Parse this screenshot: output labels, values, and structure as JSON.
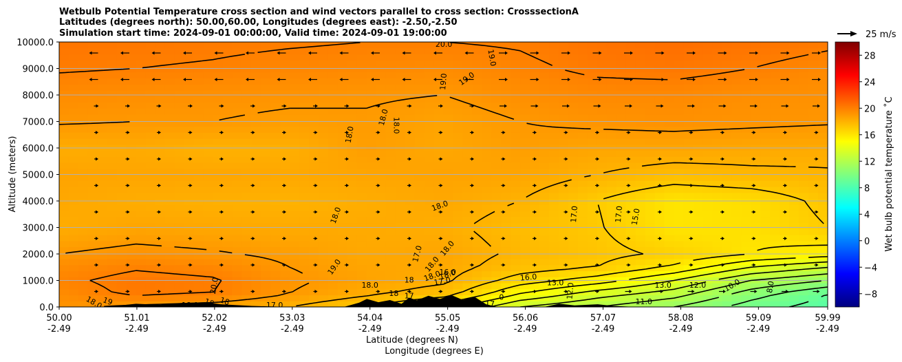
{
  "chart_data": {
    "type": "heatmap",
    "title_lines": [
      "Wetbulb Potential Temperature cross section and wind vectors parallel to cross section: CrosssectionA",
      "Latitudes (degrees north): 50.00,60.00, Longitudes (degrees east): -2.50,-2.50",
      "Simulation start time: 2024-09-01 00:00:00, Valid time: 2024-09-01 19:00:00"
    ],
    "xlabel": "Latitude (degrees N)",
    "xlabel2": "Longitude (degrees E)",
    "ylabel": "Altitude (meters)",
    "xlim": [
      50.0,
      59.99
    ],
    "ylim": [
      0,
      10000
    ],
    "x_ticks": [
      {
        "lat": "50.00",
        "lon": "-2.49",
        "value": 50.0
      },
      {
        "lat": "51.01",
        "lon": "-2.49",
        "value": 51.01
      },
      {
        "lat": "52.02",
        "lon": "-2.49",
        "value": 52.02
      },
      {
        "lat": "53.03",
        "lon": "-2.49",
        "value": 53.03
      },
      {
        "lat": "54.04",
        "lon": "-2.49",
        "value": 54.04
      },
      {
        "lat": "55.05",
        "lon": "-2.49",
        "value": 55.05
      },
      {
        "lat": "56.06",
        "lon": "-2.49",
        "value": 56.06
      },
      {
        "lat": "57.07",
        "lon": "-2.49",
        "value": 57.07
      },
      {
        "lat": "58.08",
        "lon": "-2.49",
        "value": 58.08
      },
      {
        "lat": "59.09",
        "lon": "-2.49",
        "value": 59.09
      },
      {
        "lat": "59.99",
        "lon": "-2.49",
        "value": 59.99
      }
    ],
    "y_ticks": [
      "0.0",
      "1000.0",
      "2000.0",
      "3000.0",
      "4000.0",
      "5000.0",
      "6000.0",
      "7000.0",
      "8000.0",
      "9000.0",
      "10000.0"
    ],
    "y_tick_values": [
      0,
      1000,
      2000,
      3000,
      4000,
      5000,
      6000,
      7000,
      8000,
      9000,
      10000
    ],
    "grid": "horizontal",
    "colorbar": {
      "label": "Wet bulb potential temperature ˚C",
      "ticks": [
        "−8",
        "−4",
        "0",
        "4",
        "8",
        "12",
        "16",
        "20",
        "24",
        "28"
      ],
      "tick_values": [
        -8,
        -4,
        0,
        4,
        8,
        12,
        16,
        20,
        24,
        28
      ],
      "range": [
        -10,
        30
      ],
      "colors": [
        "#00007f",
        "#0000ff",
        "#007fff",
        "#00ffff",
        "#7fff7f",
        "#ffff00",
        "#ff7f00",
        "#ff0000",
        "#7f0000"
      ]
    },
    "wind_key": "25 m/s",
    "field_description": {
      "levels": [
        {
          "z": 0,
          "temps": [
            19.2,
            18.8,
            18.5,
            18.0,
            17.0,
            15.5,
            13.0,
            12.0,
            11.0,
            9.5,
            8.5
          ]
        },
        {
          "z": 500,
          "temps": [
            19.5,
            20.2,
            20.0,
            19.0,
            18.2,
            17.5,
            15.0,
            13.5,
            12.5,
            10.5,
            9.0
          ]
        },
        {
          "z": 1000,
          "temps": [
            19.8,
            20.3,
            20.1,
            19.2,
            18.6,
            18.2,
            16.5,
            15.5,
            14.0,
            12.0,
            11.0
          ]
        },
        {
          "z": 1500,
          "temps": [
            19.5,
            19.9,
            19.7,
            19.0,
            18.5,
            18.4,
            17.5,
            17.0,
            15.8,
            14.0,
            13.0
          ]
        },
        {
          "z": 2000,
          "temps": [
            19.0,
            19.3,
            19.1,
            18.8,
            18.4,
            18.5,
            17.8,
            17.3,
            16.8,
            16.0,
            15.5
          ]
        },
        {
          "z": 3000,
          "temps": [
            18.2,
            18.5,
            18.4,
            18.3,
            18.3,
            18.2,
            17.6,
            17.1,
            16.0,
            16.2,
            17.0
          ]
        },
        {
          "z": 4000,
          "temps": [
            18.4,
            18.2,
            18.1,
            18.0,
            18.2,
            18.4,
            18.0,
            17.0,
            16.0,
            16.3,
            17.3
          ]
        },
        {
          "z": 5000,
          "temps": [
            18.6,
            18.5,
            18.5,
            18.4,
            18.5,
            18.6,
            18.5,
            18.0,
            17.6,
            17.8,
            17.9
          ]
        },
        {
          "z": 6000,
          "temps": [
            18.2,
            18.3,
            18.0,
            18.1,
            18.8,
            18.4,
            18.8,
            18.5,
            18.5,
            18.4,
            18.3
          ]
        },
        {
          "z": 7000,
          "temps": [
            19.1,
            19.0,
            19.0,
            18.8,
            18.9,
            18.6,
            19.0,
            19.2,
            19.3,
            19.2,
            19.1
          ]
        },
        {
          "z": 8000,
          "temps": [
            19.5,
            19.4,
            19.3,
            19.2,
            19.1,
            19.0,
            19.4,
            19.6,
            19.6,
            19.4,
            19.3
          ]
        },
        {
          "z": 9000,
          "temps": [
            20.1,
            20.0,
            19.9,
            19.7,
            19.6,
            19.5,
            19.8,
            20.2,
            20.3,
            20.0,
            19.6
          ]
        },
        {
          "z": 10000,
          "temps": [
            20.4,
            20.3,
            20.2,
            20.1,
            20.0,
            20.0,
            20.1,
            20.5,
            20.7,
            20.5,
            20.2
          ]
        }
      ]
    },
    "contour_labels": [
      {
        "text": "20.0",
        "lat": 55.0,
        "z": 9900
      },
      {
        "text": "19.0",
        "lat": 55.62,
        "z": 9400,
        "rot": 80
      },
      {
        "text": "19.0",
        "lat": 55.0,
        "z": 8500,
        "rot": -85
      },
      {
        "text": "19.0",
        "lat": 55.3,
        "z": 8600,
        "rot": -35
      },
      {
        "text": "18.0",
        "lat": 54.22,
        "z": 7150,
        "rot": -75
      },
      {
        "text": "18.0",
        "lat": 54.38,
        "z": 6850,
        "rot": 90
      },
      {
        "text": "18.0",
        "lat": 53.78,
        "z": 6500,
        "rot": -80
      },
      {
        "text": "18.0",
        "lat": 54.95,
        "z": 3800,
        "rot": -20
      },
      {
        "text": "18.0",
        "lat": 53.6,
        "z": 3450,
        "rot": -70
      },
      {
        "text": "17.0",
        "lat": 56.7,
        "z": 3500,
        "rot": -85
      },
      {
        "text": "17.0",
        "lat": 57.28,
        "z": 3500,
        "rot": -85
      },
      {
        "text": "15.0",
        "lat": 57.5,
        "z": 3400,
        "rot": -80
      },
      {
        "text": "19.0",
        "lat": 53.58,
        "z": 1500,
        "rot": -55
      },
      {
        "text": "17.0",
        "lat": 54.66,
        "z": 2000,
        "rot": -75
      },
      {
        "text": "18.0",
        "lat": 55.05,
        "z": 2200,
        "rot": -50
      },
      {
        "text": "18.0",
        "lat": 54.85,
        "z": 1600,
        "rot": -50
      },
      {
        "text": "18.0",
        "lat": 55.05,
        "z": 1200,
        "rot": -20
      },
      {
        "text": "18.0",
        "lat": 54.85,
        "z": 1150,
        "rot": -20
      },
      {
        "text": "17.0",
        "lat": 54.98,
        "z": 950,
        "rot": -10
      },
      {
        "text": "16.0",
        "lat": 56.1,
        "z": 1100,
        "rot": -5
      },
      {
        "text": "13.0",
        "lat": 56.45,
        "z": 900
      },
      {
        "text": "12.0",
        "lat": 56.65,
        "z": 600,
        "rot": -85
      },
      {
        "text": "13.0",
        "lat": 57.85,
        "z": 800
      },
      {
        "text": "12.0",
        "lat": 58.3,
        "z": 800
      },
      {
        "text": "10.0",
        "lat": 58.75,
        "z": 800,
        "rot": -30
      },
      {
        "text": "8.0",
        "lat": 59.25,
        "z": 750,
        "rot": -80
      },
      {
        "text": "11.0",
        "lat": 57.6,
        "z": 180
      },
      {
        "text": "20.0",
        "lat": 52.02,
        "z": 800,
        "rot": -80
      },
      {
        "text": "18.0",
        "lat": 54.04,
        "z": 800
      },
      {
        "text": "18.0",
        "lat": 50.45,
        "z": 150,
        "rot": 30
      },
      {
        "text": "19",
        "lat": 50.63,
        "z": 200,
        "rot": 20
      },
      {
        "text": "18",
        "lat": 52.15,
        "z": 200,
        "rot": 20
      },
      {
        "text": "18",
        "lat": 51.95,
        "z": 150,
        "rot": 20
      },
      {
        "text": "18.0",
        "lat": 51.7,
        "z": 50
      },
      {
        "text": "17.0",
        "lat": 52.8,
        "z": 50
      },
      {
        "text": "18",
        "lat": 54.35,
        "z": 500
      },
      {
        "text": "17",
        "lat": 54.55,
        "z": 400
      },
      {
        "text": "18",
        "lat": 54.55,
        "z": 1000
      },
      {
        "text": "16.0",
        "lat": 55.05,
        "z": 1300
      },
      {
        "text": "17",
        "lat": 55.6,
        "z": 100
      },
      {
        "text": "0",
        "lat": 55.75,
        "z": 350
      }
    ],
    "terrain_m": [
      {
        "lat": 50.0,
        "z": 0
      },
      {
        "lat": 50.6,
        "z": 0
      },
      {
        "lat": 50.8,
        "z": 60
      },
      {
        "lat": 51.0,
        "z": 120
      },
      {
        "lat": 51.3,
        "z": 80
      },
      {
        "lat": 51.6,
        "z": 150
      },
      {
        "lat": 51.9,
        "z": 180
      },
      {
        "lat": 52.1,
        "z": 100
      },
      {
        "lat": 52.5,
        "z": 40
      },
      {
        "lat": 53.0,
        "z": 0
      },
      {
        "lat": 53.7,
        "z": 0
      },
      {
        "lat": 53.9,
        "z": 160
      },
      {
        "lat": 54.0,
        "z": 300
      },
      {
        "lat": 54.15,
        "z": 180
      },
      {
        "lat": 54.3,
        "z": 260
      },
      {
        "lat": 54.45,
        "z": 120
      },
      {
        "lat": 54.55,
        "z": 350
      },
      {
        "lat": 54.65,
        "z": 250
      },
      {
        "lat": 54.8,
        "z": 420
      },
      {
        "lat": 54.95,
        "z": 300
      },
      {
        "lat": 55.1,
        "z": 450
      },
      {
        "lat": 55.25,
        "z": 260
      },
      {
        "lat": 55.4,
        "z": 380
      },
      {
        "lat": 55.55,
        "z": 100
      },
      {
        "lat": 55.7,
        "z": 0
      },
      {
        "lat": 56.3,
        "z": 0
      },
      {
        "lat": 56.5,
        "z": 120
      },
      {
        "lat": 56.7,
        "z": 60
      },
      {
        "lat": 57.0,
        "z": 100
      },
      {
        "lat": 57.2,
        "z": 40
      },
      {
        "lat": 57.5,
        "z": 0
      },
      {
        "lat": 59.99,
        "z": 0
      }
    ]
  }
}
